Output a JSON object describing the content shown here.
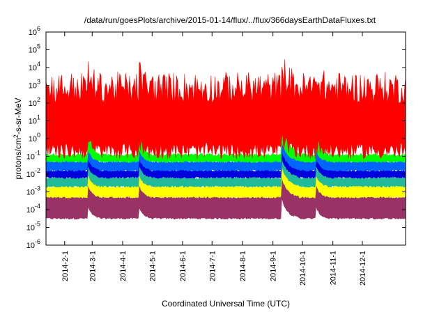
{
  "chart_data": {
    "type": "area",
    "title": "/data/run/goesPlots/archive/2015-01-14/flux/../flux/366daysEarthDataFluxes.txt",
    "xlabel": "Coordinated Universal Time (UTC)",
    "ylabel": {
      "prefix": "protons/cm",
      "sup": "2",
      "suffix": "-s-sr-MeV"
    },
    "yscale": "log",
    "ylim_exp": [
      -6,
      6
    ],
    "y_ticks": [
      {
        "base": "10",
        "exp": "-6"
      },
      {
        "base": "10",
        "exp": "-5"
      },
      {
        "base": "10",
        "exp": "-4"
      },
      {
        "base": "10",
        "exp": "-3"
      },
      {
        "base": "10",
        "exp": "-2"
      },
      {
        "base": "10",
        "exp": "-1"
      },
      {
        "base": "10",
        "exp": "0"
      },
      {
        "base": "10",
        "exp": "1"
      },
      {
        "base": "10",
        "exp": "2"
      },
      {
        "base": "10",
        "exp": "3"
      },
      {
        "base": "10",
        "exp": "4"
      },
      {
        "base": "10",
        "exp": "5"
      },
      {
        "base": "10",
        "exp": "6"
      }
    ],
    "x_ticks": [
      "2014-2-1",
      "2014-3-1",
      "2014-4-1",
      "2014-5-1",
      "2014-6-1",
      "2014-7-1",
      "2014-8-1",
      "2014-9-1",
      "2014-10-1",
      "2014-11-1",
      "2014-12-1"
    ],
    "xlim": [
      "2014-01-13",
      "2015-01-14"
    ],
    "grid": false,
    "legend": "none",
    "series": [
      {
        "color": "#993366",
        "band_log10": [
          -4.5,
          -3.3
        ]
      },
      {
        "color": "#ffff00",
        "band_log10": [
          -3.3,
          -2.7
        ]
      },
      {
        "color": "#22bb99",
        "band_log10": [
          -2.7,
          -2.2
        ]
      },
      {
        "color": "#0000dd",
        "band_log10": [
          -2.2,
          -1.8
        ]
      },
      {
        "color": "#0066ff",
        "band_log10": [
          -1.8,
          -1.3
        ]
      },
      {
        "color": "#00ff00",
        "band_log10": [
          -1.3,
          -0.9
        ]
      },
      {
        "color": "#ff0000",
        "band_log10": [
          -0.7,
          2.5
        ]
      }
    ],
    "events": [
      "2014-02-25",
      "2014-04-18",
      "2014-09-10",
      "2014-10-15"
    ]
  }
}
